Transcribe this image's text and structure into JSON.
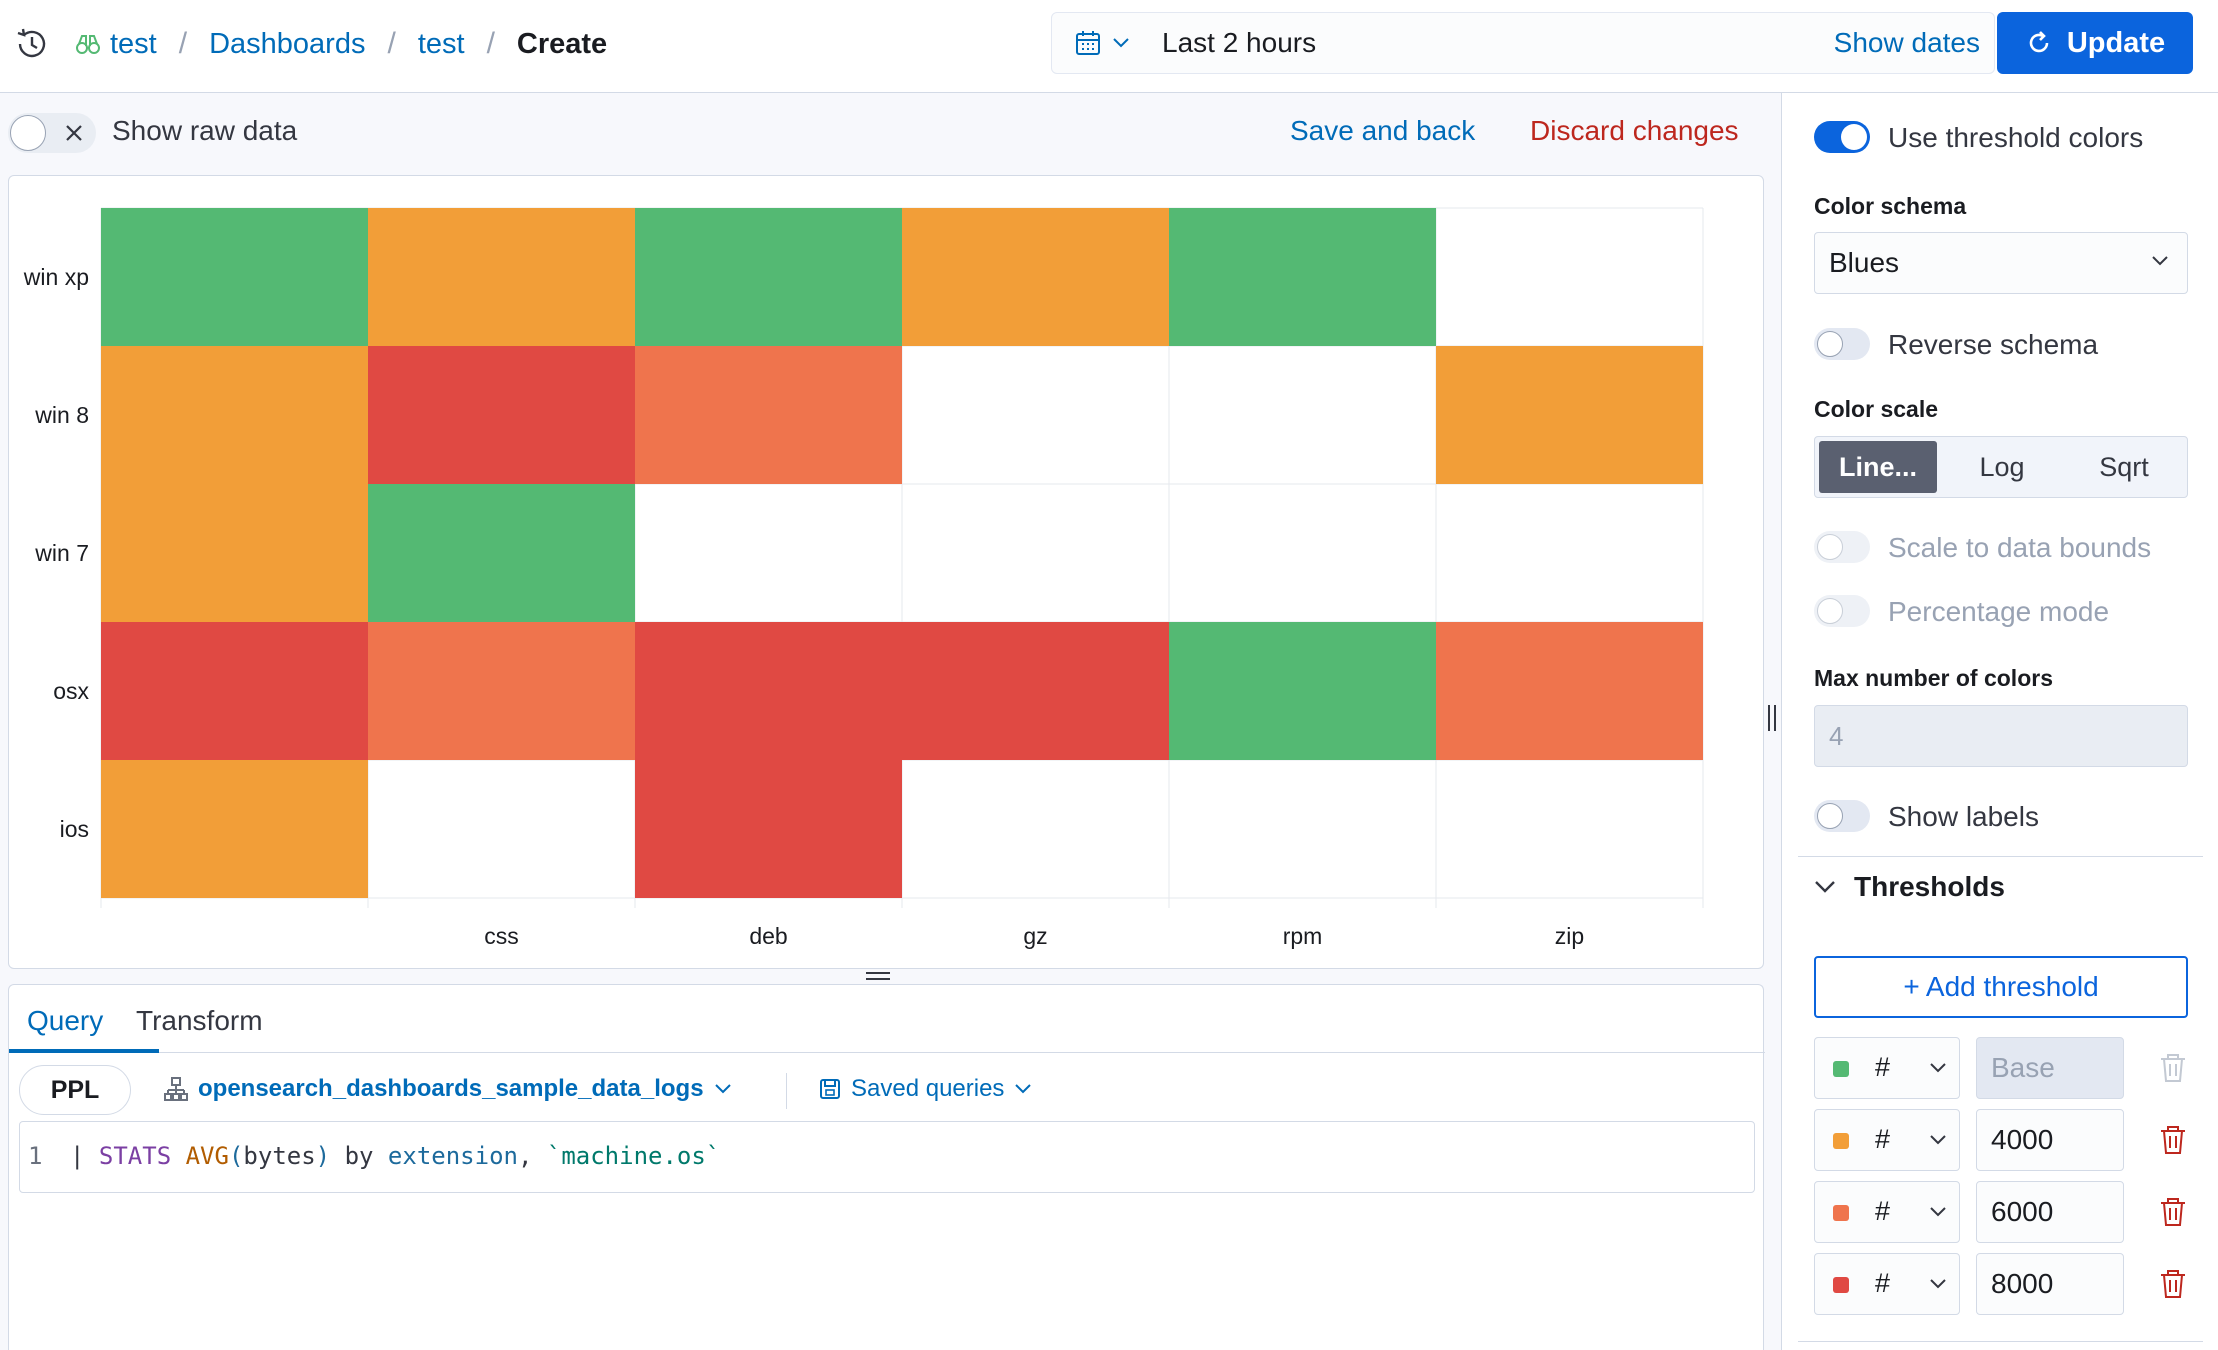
{
  "header": {
    "breadcrumb": [
      {
        "label": "test"
      },
      {
        "label": "Dashboards"
      },
      {
        "label": "test"
      },
      {
        "label": "Create"
      }
    ],
    "datepicker": {
      "range": "Last 2 hours",
      "show_dates": "Show dates"
    },
    "update_label": "Update"
  },
  "toolbar": {
    "show_raw": "Show raw data",
    "save_back": "Save and back",
    "discard": "Discard changes"
  },
  "chart_data": {
    "type": "heatmap",
    "x_categories": [
      "",
      "css",
      "deb",
      "gz",
      "rpm",
      "zip"
    ],
    "y_categories": [
      "win xp",
      "win 8",
      "win 7",
      "osx",
      "ios"
    ],
    "cell_colors": [
      [
        "#54b973",
        "#f29e38",
        "#54b973",
        "#f29e38",
        "#54b973",
        null
      ],
      [
        "#f29e38",
        "#e04943",
        "#ef744d",
        null,
        null,
        "#f29e38"
      ],
      [
        "#f29e38",
        "#54b973",
        null,
        null,
        null,
        null
      ],
      [
        "#e04943",
        "#ef744d",
        "#e04943",
        "#e04943",
        "#54b973",
        "#ef744d"
      ],
      [
        "#f29e38",
        null,
        "#e04943",
        null,
        null,
        null
      ]
    ],
    "thresholds": [
      {
        "from": "Base",
        "color": "#54b973"
      },
      {
        "from": 4000,
        "color": "#f29e38"
      },
      {
        "from": 6000,
        "color": "#ef744d"
      },
      {
        "from": 8000,
        "color": "#e04943"
      }
    ]
  },
  "query": {
    "tabs": [
      {
        "label": "Query"
      },
      {
        "label": "Transform"
      }
    ],
    "language": "PPL",
    "datasource": "opensearch_dashboards_sample_data_logs",
    "saved_queries": "Saved queries",
    "line_number": "1",
    "code": {
      "pipe": "| ",
      "stats": "STATS",
      "avg": "AVG",
      "paren_open": "(",
      "arg": "bytes",
      "paren_close": ")",
      "by": " by ",
      "field1": "extension",
      "comma": ", ",
      "field2": "`machine.os`"
    }
  },
  "sidebar": {
    "use_threshold": "Use threshold colors",
    "color_schema_title": "Color schema",
    "color_schema_value": "Blues",
    "reverse_schema": "Reverse schema",
    "color_scale_title": "Color scale",
    "scale_options": [
      {
        "label": "Line..."
      },
      {
        "label": "Log"
      },
      {
        "label": "Sqrt"
      }
    ],
    "scale_to_bounds": "Scale to data bounds",
    "percentage_mode": "Percentage mode",
    "max_colors_title": "Max number of colors",
    "max_colors_value": "4",
    "show_labels": "Show labels",
    "thresholds_title": "Thresholds",
    "add_threshold": "+ Add threshold",
    "threshold_rows": [
      {
        "hash": "#",
        "value": "Base",
        "color": "#54b973"
      },
      {
        "hash": "#",
        "value": "4000",
        "color": "#f29e38"
      },
      {
        "hash": "#",
        "value": "6000",
        "color": "#ef744d"
      },
      {
        "hash": "#",
        "value": "8000",
        "color": "#e04943"
      }
    ]
  }
}
